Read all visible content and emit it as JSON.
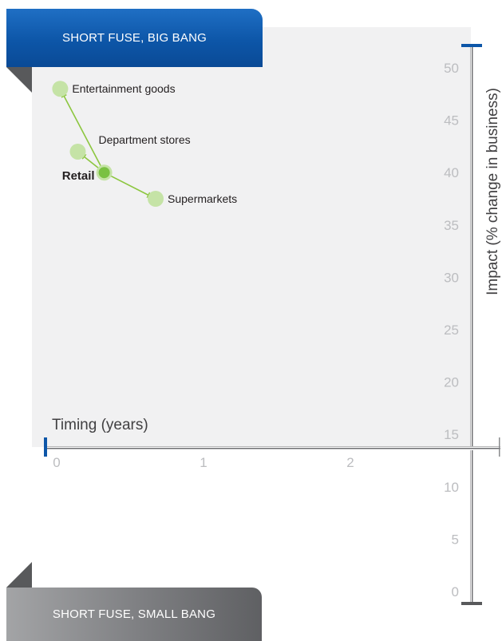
{
  "banners": {
    "top": "SHORT FUSE, BIG BANG",
    "bottom": "SHORT FUSE, SMALL BANG"
  },
  "colors": {
    "panel": "#f1f1f2",
    "axis": "#8a8b8d",
    "axis_accent": "#0d56a8",
    "tick_text": "#bcbdc0",
    "point_main": "#7ac142",
    "point_light": "#c5e3a6",
    "arrow": "#8cc63f"
  },
  "chart_data": {
    "type": "scatter",
    "xlabel": "Timing (years)",
    "ylabel": "Impact (% change in business)",
    "xlim": [
      0,
      3
    ],
    "ylim": [
      0,
      50
    ],
    "xticks": [
      0,
      1,
      2
    ],
    "yticks": [
      0,
      5,
      10,
      15,
      20,
      25,
      30,
      35,
      40,
      45,
      50
    ],
    "grid": false,
    "points": [
      {
        "label": "Retail",
        "x": 0.4,
        "y": 40,
        "main": true
      },
      {
        "label": "Entertainment goods",
        "x": 0.1,
        "y": 48,
        "main": false
      },
      {
        "label": "Department stores",
        "x": 0.22,
        "y": 42,
        "main": false
      },
      {
        "label": "Supermarkets",
        "x": 0.75,
        "y": 37.5,
        "main": false
      }
    ],
    "arrows": [
      {
        "from": "Retail",
        "to": "Entertainment goods"
      },
      {
        "from": "Retail",
        "to": "Department stores"
      },
      {
        "from": "Retail",
        "to": "Supermarkets"
      }
    ]
  }
}
